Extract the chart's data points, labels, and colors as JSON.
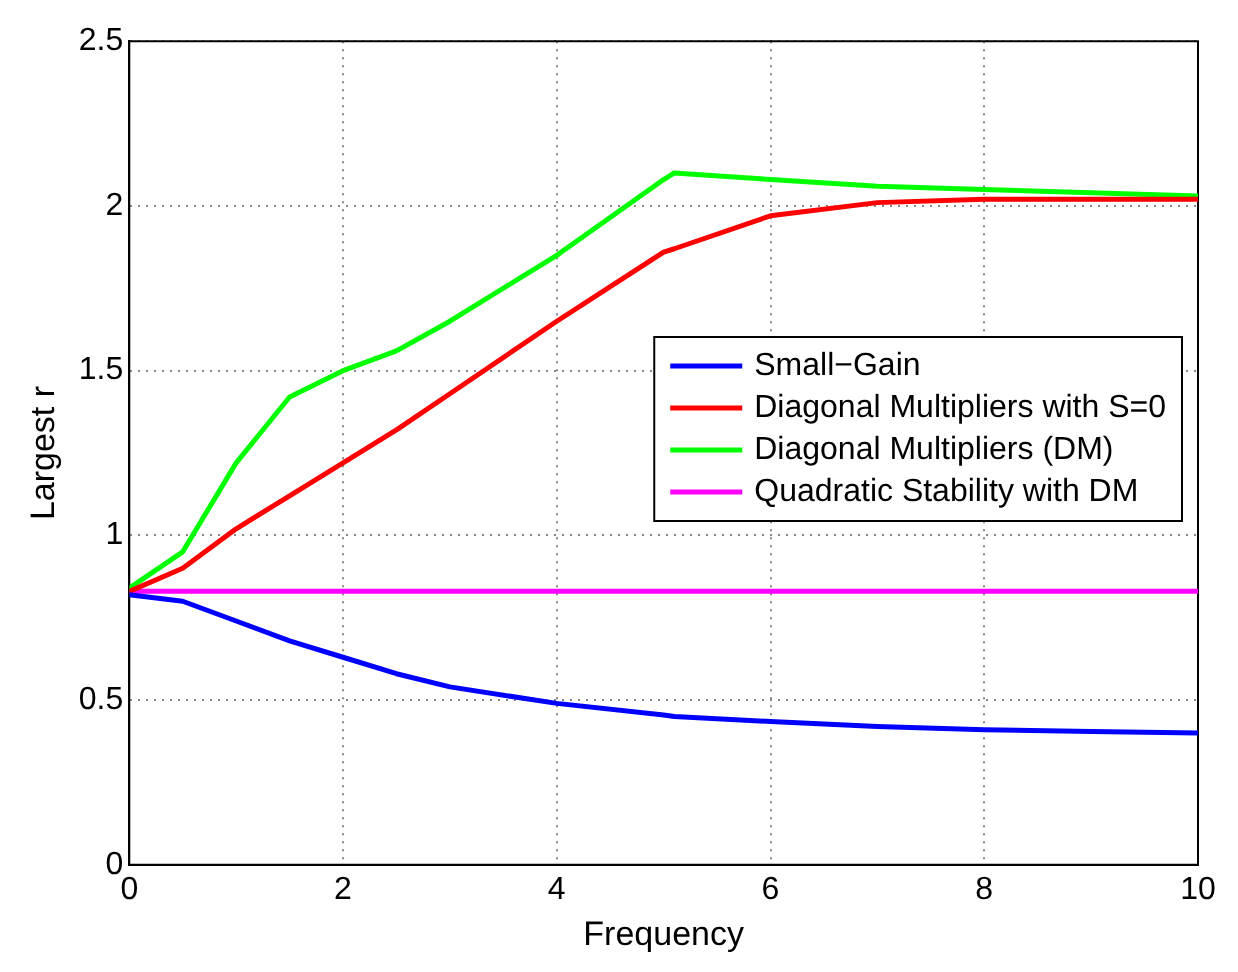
{
  "chart_data": {
    "type": "line",
    "xlabel": "Frequency",
    "ylabel": "Largest r",
    "xlim": [
      0,
      10
    ],
    "xticks": [
      0,
      2,
      4,
      6,
      8,
      10
    ],
    "ylim": [
      0,
      2.5
    ],
    "yticks": [
      0,
      0.5,
      1,
      1.5,
      2,
      2.5
    ],
    "grid": true,
    "legend": "right",
    "line_style": "solid",
    "marker": "none",
    "x": [
      0,
      0.5,
      1,
      1.5,
      2,
      2.5,
      3,
      4,
      5,
      5.1,
      6,
      7,
      8,
      9,
      10
    ],
    "series": [
      {
        "name": "Small−Gain",
        "color": "#0000ff",
        "values": [
          0.82,
          0.8,
          0.74,
          0.68,
          0.63,
          0.58,
          0.54,
          0.49,
          0.455,
          0.45,
          0.435,
          0.42,
          0.41,
          0.405,
          0.4
        ]
      },
      {
        "name": "Diagonal Multipliers with S=0",
        "color": "#ff0000",
        "values": [
          0.83,
          0.9,
          1.02,
          1.12,
          1.22,
          1.32,
          1.43,
          1.65,
          1.86,
          1.87,
          1.97,
          2.01,
          2.02,
          2.02,
          2.02
        ]
      },
      {
        "name": "Diagonal Multipliers (DM)",
        "color": "#00ff00",
        "values": [
          0.84,
          0.95,
          1.22,
          1.42,
          1.5,
          1.56,
          1.65,
          1.85,
          2.08,
          2.1,
          2.08,
          2.06,
          2.05,
          2.04,
          2.03
        ]
      },
      {
        "name": "Quadratic Stability with DM",
        "color": "#ff00ff",
        "x": [
          0,
          10
        ],
        "values": [
          0.83,
          0.83
        ]
      }
    ]
  }
}
